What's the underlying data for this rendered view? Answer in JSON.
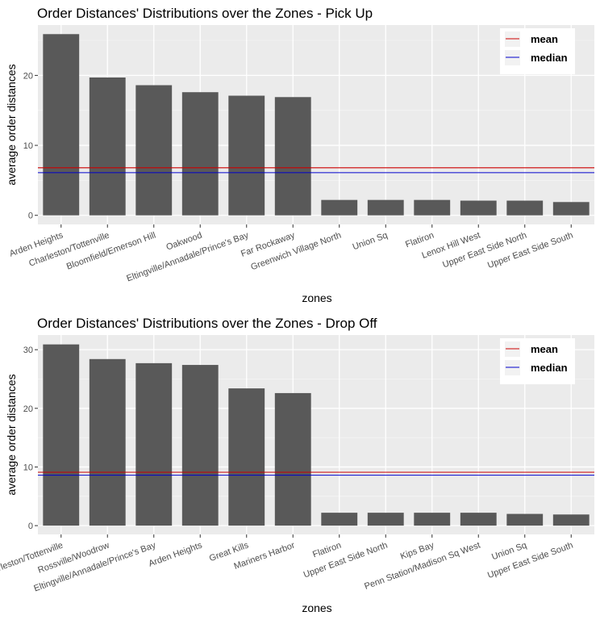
{
  "chart_data": [
    {
      "type": "bar",
      "title": "Order Distances' Distributions over the Zones  - Pick Up",
      "xlabel": "zones",
      "ylabel": "average order distances",
      "categories": [
        "Arden Heights",
        "Charleston/Tottenville",
        "Bloomfield/Emerson Hill",
        "Oakwood",
        "Eltingville/Annadale/Prince's Bay",
        "Far Rockaway",
        "Greenwich Village North",
        "Union Sq",
        "Flatiron",
        "Lenox Hill West",
        "Upper East Side North",
        "Upper East Side South"
      ],
      "values": [
        25.9,
        19.7,
        18.6,
        17.6,
        17.1,
        16.9,
        2.2,
        2.2,
        2.2,
        2.1,
        2.1,
        1.9
      ],
      "ylim": [
        -1.3,
        27.2
      ],
      "yticks": [
        0,
        10,
        20
      ],
      "hlines": [
        {
          "name": "mean",
          "value": 6.8,
          "color": "#cc0000"
        },
        {
          "name": "median",
          "value": 6.1,
          "color": "#0000cc"
        }
      ],
      "bar_color": "#595959",
      "panel_color": "#ebebeb",
      "grid": true,
      "legend_position": "top-right"
    },
    {
      "type": "bar",
      "title": "Order Distances' Distributions over the Zones  - Drop Off",
      "xlabel": "zones",
      "ylabel": "average order distances",
      "categories": [
        "Charleston/Tottenville",
        "Rossville/Woodrow",
        "Eltingville/Annadale/Prince's Bay",
        "Arden Heights",
        "Great Kills",
        "Mariners Harbor",
        "Flatiron",
        "Upper East Side North",
        "Kips Bay",
        "Penn Station/Madison Sq West",
        "Union Sq",
        "Upper East Side South"
      ],
      "values": [
        30.9,
        28.4,
        27.7,
        27.4,
        23.4,
        22.6,
        2.2,
        2.2,
        2.2,
        2.2,
        2.0,
        1.9
      ],
      "ylim": [
        -1.5,
        32.5
      ],
      "yticks": [
        0,
        10,
        20,
        30
      ],
      "hlines": [
        {
          "name": "mean",
          "value": 9.1,
          "color": "#cc0000"
        },
        {
          "name": "median",
          "value": 8.6,
          "color": "#0000cc"
        }
      ],
      "bar_color": "#595959",
      "panel_color": "#ebebeb",
      "grid": true,
      "legend_position": "top-right"
    }
  ]
}
